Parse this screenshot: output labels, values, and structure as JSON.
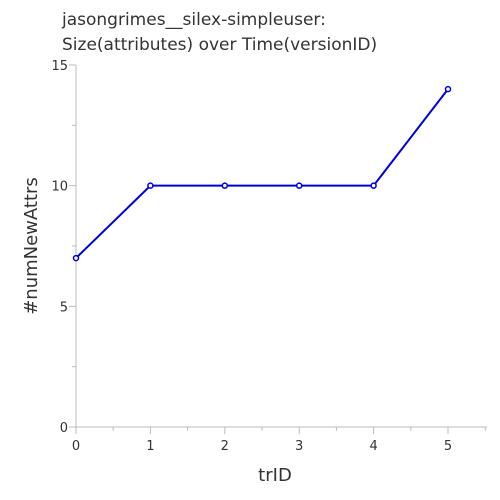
{
  "chart_data": {
    "type": "line",
    "title": [
      "jasongrimes__silex-simpleuser:",
      "Size(attributes) over Time(versionID)"
    ],
    "xlabel": "trID",
    "ylabel": "#numNewAttrs",
    "x": [
      0,
      1,
      2,
      3,
      4,
      5
    ],
    "series": [
      {
        "values": [
          7,
          10,
          10,
          10,
          10,
          14
        ]
      }
    ],
    "xlim": [
      0,
      5.5
    ],
    "ylim": [
      0,
      15
    ],
    "xticks": [
      "0",
      "1",
      "2",
      "3",
      "4",
      "5"
    ],
    "yticks": [
      "0",
      "5",
      "10",
      "15"
    ],
    "grid": false,
    "line_color": "#0000dd",
    "axis_color": "#bbbbbb"
  }
}
